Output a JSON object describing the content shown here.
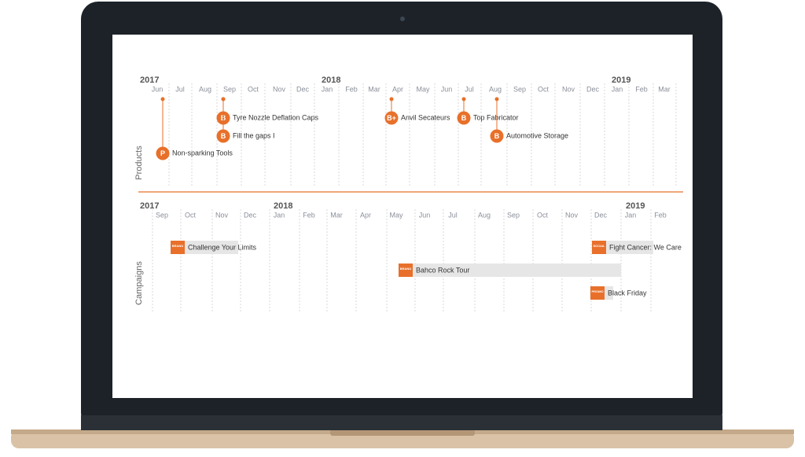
{
  "products": {
    "axis_label": "Products",
    "years": [
      "2017",
      "2018",
      "2019"
    ],
    "months": [
      "Jun",
      "Jul",
      "Aug",
      "Sep",
      "Oct",
      "Nov",
      "Dec",
      "Jan",
      "Feb",
      "Mar",
      "Apr",
      "May",
      "Jun",
      "Jul",
      "Aug",
      "Sep",
      "Oct",
      "Nov",
      "Dec",
      "Jan",
      "Feb",
      "Mar"
    ],
    "items": [
      {
        "icon": "B",
        "label": "Tyre Nozzle Deflation Caps"
      },
      {
        "icon": "B",
        "label": "Fill the gaps I"
      },
      {
        "icon": "P",
        "label": "Non-sparking Tools"
      },
      {
        "icon": "B+",
        "label": "Anvil Secateurs"
      },
      {
        "icon": "B",
        "label": "Top Fabricator"
      },
      {
        "icon": "B",
        "label": "Automotive Storage"
      }
    ]
  },
  "campaigns": {
    "axis_label": "Campaigns",
    "years": [
      "2017",
      "2018",
      "2019"
    ],
    "months": [
      "Sep",
      "Oct",
      "Nov",
      "Dec",
      "Jan",
      "Feb",
      "Mar",
      "Apr",
      "May",
      "Jun",
      "Jul",
      "Aug",
      "Sep",
      "Oct",
      "Nov",
      "Dec",
      "Jan",
      "Feb"
    ],
    "items": [
      {
        "badge": "BRAND",
        "label": "Challenge Your Limits"
      },
      {
        "badge": "BRAND",
        "label": "Bahco Rock Tour"
      },
      {
        "badge": "SOCIAL",
        "label": "Fight Cancer: We Care"
      },
      {
        "badge": "PROMO",
        "label": "Black Friday"
      }
    ]
  }
}
